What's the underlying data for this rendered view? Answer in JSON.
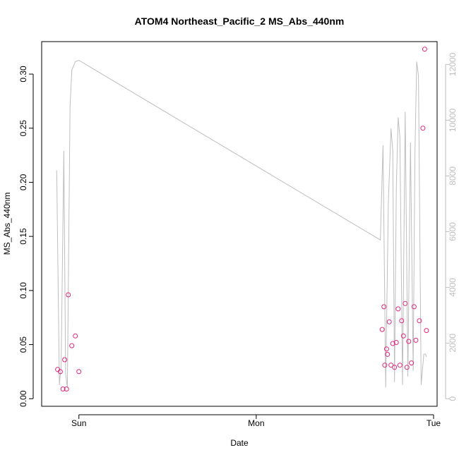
{
  "chart_data": {
    "type": "scatter",
    "title": "ATOM4 Northeast_Pacific_2 MS_Abs_440nm",
    "xlabel": "Date",
    "ylabel": "MS_Abs_440nm",
    "x_ticks": [
      "Sun",
      "Mon",
      "Tue"
    ],
    "y_ticks": [
      "0.00",
      "0.05",
      "0.10",
      "0.15",
      "0.20",
      "0.25",
      "0.30"
    ],
    "y_tick_values": [
      0.0,
      0.05,
      0.1,
      0.15,
      0.2,
      0.25,
      0.3
    ],
    "y_right_ticks": [
      "0",
      "2000",
      "4000",
      "6000",
      "8000",
      "10000",
      "12000"
    ],
    "y_right_tick_values": [
      0,
      2000,
      4000,
      6000,
      8000,
      10000,
      12000
    ],
    "ylim": [
      -0.007,
      0.33
    ],
    "y_right_lim": [
      -270,
      12820
    ],
    "xlim": [
      -0.21,
      2.02
    ],
    "grid": false,
    "point_color": "#e0267f",
    "line_color": "#bebebe",
    "series": [
      {
        "kind": "points",
        "axis": "left",
        "x": [
          -0.12,
          -0.105,
          -0.09,
          -0.08,
          -0.07,
          -0.06,
          -0.04,
          -0.02,
          0.0,
          1.71,
          1.72,
          1.725,
          1.735,
          1.74,
          1.75,
          1.76,
          1.77,
          1.78,
          1.79,
          1.8,
          1.81,
          1.82,
          1.83,
          1.84,
          1.85,
          1.86,
          1.875,
          1.89,
          1.9,
          1.92,
          1.94,
          1.95,
          1.96
        ],
        "y": [
          0.027,
          0.025,
          0.009,
          0.036,
          0.009,
          0.096,
          0.049,
          0.058,
          0.025,
          0.064,
          0.085,
          0.031,
          0.046,
          0.041,
          0.071,
          0.031,
          0.051,
          0.029,
          0.052,
          0.083,
          0.031,
          0.072,
          0.058,
          0.088,
          0.029,
          0.053,
          0.033,
          0.085,
          0.054,
          0.072,
          0.25,
          0.323,
          0.063
        ]
      },
      {
        "kind": "line",
        "axis": "right",
        "x": [
          -0.125,
          -0.11,
          -0.1,
          -0.085,
          -0.075,
          -0.065,
          -0.05,
          -0.04,
          -0.02,
          0.0,
          1.7,
          1.715,
          1.73,
          1.745,
          1.76,
          1.77,
          1.78,
          1.79,
          1.8,
          1.81,
          1.825,
          1.84,
          1.855,
          1.87,
          1.885,
          1.895,
          1.905,
          1.915,
          1.93,
          1.945,
          1.955,
          1.96
        ],
        "y": [
          8200,
          500,
          1200,
          8900,
          900,
          400,
          10500,
          11800,
          12100,
          12150,
          5700,
          9100,
          400,
          7000,
          9700,
          8900,
          600,
          7500,
          10100,
          9400,
          500,
          10300,
          800,
          9200,
          1000,
          8800,
          12100,
          11600,
          500,
          1600,
          1600,
          1500
        ]
      }
    ]
  }
}
